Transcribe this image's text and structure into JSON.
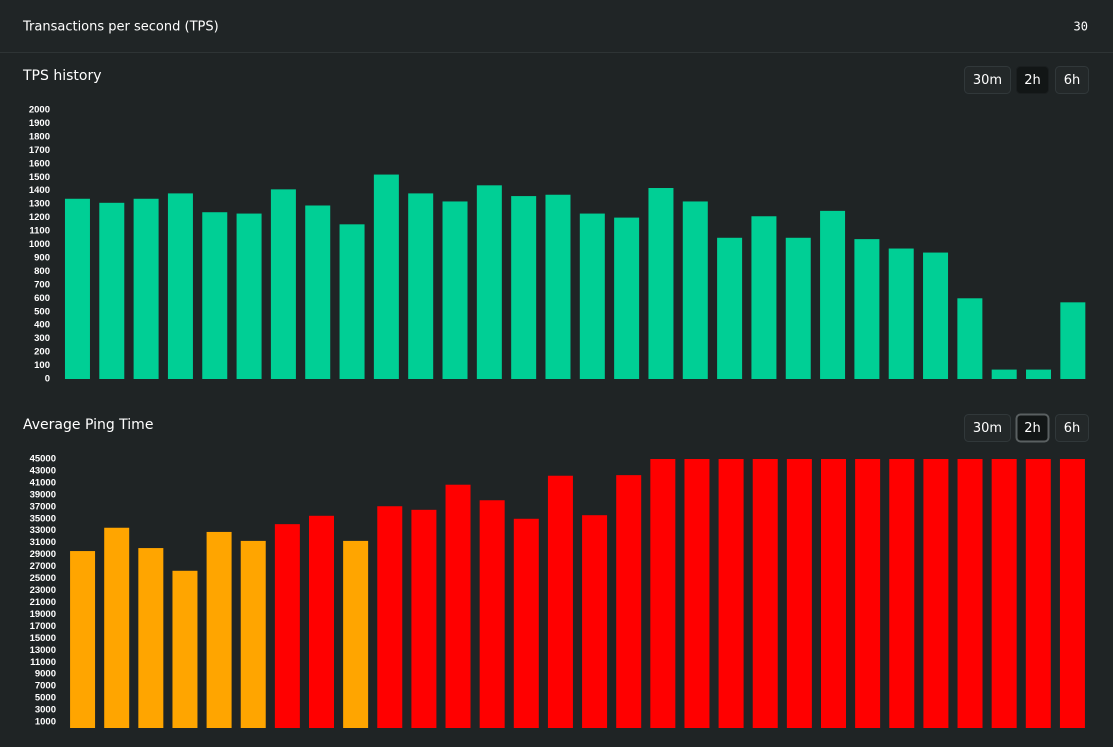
{
  "header": {
    "title": "Transactions per second (TPS)",
    "value": "30"
  },
  "charts": [
    {
      "title": "TPS history",
      "ranges": [
        "30m",
        "2h",
        "6h"
      ],
      "selected": "2h",
      "chart_data": {
        "type": "bar",
        "color": "#00cf95",
        "values": [
          1340,
          1310,
          1340,
          1380,
          1240,
          1230,
          1410,
          1290,
          1150,
          1520,
          1380,
          1320,
          1440,
          1360,
          1370,
          1230,
          1200,
          1420,
          1320,
          1050,
          1210,
          1050,
          1250,
          1040,
          970,
          940,
          600,
          70,
          70,
          570
        ],
        "ylim": [
          0,
          2000
        ],
        "yticks": [
          0,
          100,
          200,
          300,
          400,
          500,
          600,
          700,
          800,
          900,
          1000,
          1100,
          1200,
          1300,
          1400,
          1500,
          1600,
          1700,
          1800,
          1900,
          2000
        ]
      }
    },
    {
      "title": "Average Ping Time",
      "ranges": [
        "30m",
        "2h",
        "6h"
      ],
      "selected": "2h",
      "chart_data": {
        "type": "bar",
        "values": [
          29600,
          33500,
          30100,
          26300,
          32800,
          31300,
          34100,
          35500,
          31300,
          37100,
          36500,
          40700,
          38100,
          35000,
          42200,
          35600,
          42300,
          45000,
          45000,
          45000,
          45000,
          45000,
          45000,
          45000,
          45000,
          45000,
          45000,
          45000,
          45000,
          45000
        ],
        "colors": [
          "#ffa500",
          "#ffa500",
          "#ffa500",
          "#ffa500",
          "#ffa500",
          "#ffa500",
          "#ff0000",
          "#ff0000",
          "#ffa500",
          "#ff0000",
          "#ff0000",
          "#ff0000",
          "#ff0000",
          "#ff0000",
          "#ff0000",
          "#ff0000",
          "#ff0000",
          "#ff0000",
          "#ff0000",
          "#ff0000",
          "#ff0000",
          "#ff0000",
          "#ff0000",
          "#ff0000",
          "#ff0000",
          "#ff0000",
          "#ff0000",
          "#ff0000",
          "#ff0000",
          "#ff0000"
        ],
        "ylim": [
          0,
          45000
        ],
        "yticks": [
          1000,
          3000,
          5000,
          7000,
          9000,
          11000,
          13000,
          15000,
          17000,
          19000,
          21000,
          23000,
          25000,
          27000,
          29000,
          31000,
          33000,
          35000,
          37000,
          39000,
          41000,
          43000,
          45000
        ]
      }
    }
  ]
}
